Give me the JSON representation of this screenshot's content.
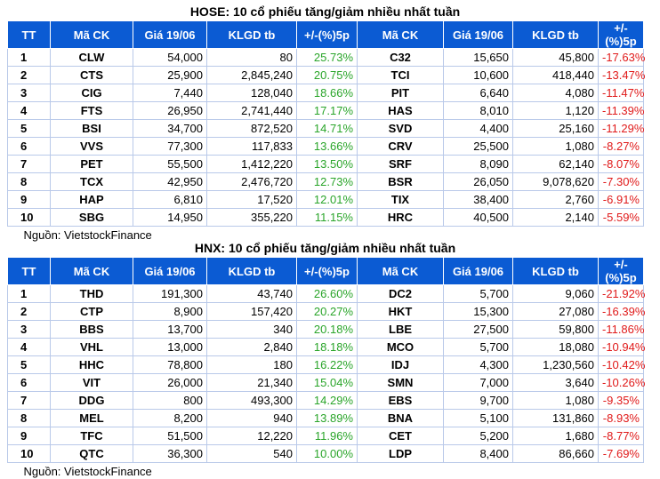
{
  "headers": [
    "TT",
    "Mã CK",
    "Giá 19/06",
    "KLGD tb",
    "+/-(%)5p",
    "Mã CK",
    "Giá 19/06",
    "KLGD tb",
    "+/-(%)5p"
  ],
  "hose": {
    "title": "HOSE: 10 cổ phiếu tăng/giảm nhiều nhất tuần",
    "source": "Nguồn: VietstockFinance",
    "rows": [
      {
        "tt": "1",
        "g_sym": "CLW",
        "g_price": "54,000",
        "g_vol": "80",
        "g_pct": "25.73%",
        "l_sym": "C32",
        "l_price": "15,650",
        "l_vol": "45,800",
        "l_pct": "-17.63%"
      },
      {
        "tt": "2",
        "g_sym": "CTS",
        "g_price": "25,900",
        "g_vol": "2,845,240",
        "g_pct": "20.75%",
        "l_sym": "TCI",
        "l_price": "10,600",
        "l_vol": "418,440",
        "l_pct": "-13.47%"
      },
      {
        "tt": "3",
        "g_sym": "CIG",
        "g_price": "7,440",
        "g_vol": "128,040",
        "g_pct": "18.66%",
        "l_sym": "PIT",
        "l_price": "6,640",
        "l_vol": "4,080",
        "l_pct": "-11.47%"
      },
      {
        "tt": "4",
        "g_sym": "FTS",
        "g_price": "26,950",
        "g_vol": "2,741,440",
        "g_pct": "17.17%",
        "l_sym": "HAS",
        "l_price": "8,010",
        "l_vol": "1,120",
        "l_pct": "-11.39%"
      },
      {
        "tt": "5",
        "g_sym": "BSI",
        "g_price": "34,700",
        "g_vol": "872,520",
        "g_pct": "14.71%",
        "l_sym": "SVD",
        "l_price": "4,400",
        "l_vol": "25,160",
        "l_pct": "-11.29%"
      },
      {
        "tt": "6",
        "g_sym": "VVS",
        "g_price": "77,300",
        "g_vol": "117,833",
        "g_pct": "13.66%",
        "l_sym": "CRV",
        "l_price": "25,500",
        "l_vol": "1,080",
        "l_pct": "-8.27%"
      },
      {
        "tt": "7",
        "g_sym": "PET",
        "g_price": "55,500",
        "g_vol": "1,412,220",
        "g_pct": "13.50%",
        "l_sym": "SRF",
        "l_price": "8,090",
        "l_vol": "62,140",
        "l_pct": "-8.07%"
      },
      {
        "tt": "8",
        "g_sym": "TCX",
        "g_price": "42,950",
        "g_vol": "2,476,720",
        "g_pct": "12.73%",
        "l_sym": "BSR",
        "l_price": "26,050",
        "l_vol": "9,078,620",
        "l_pct": "-7.30%"
      },
      {
        "tt": "9",
        "g_sym": "HAP",
        "g_price": "6,810",
        "g_vol": "17,520",
        "g_pct": "12.01%",
        "l_sym": "TIX",
        "l_price": "38,400",
        "l_vol": "2,760",
        "l_pct": "-6.91%"
      },
      {
        "tt": "10",
        "g_sym": "SBG",
        "g_price": "14,950",
        "g_vol": "355,220",
        "g_pct": "11.15%",
        "l_sym": "HRC",
        "l_price": "40,500",
        "l_vol": "2,140",
        "l_pct": "-5.59%"
      }
    ]
  },
  "hnx": {
    "title": "HNX: 10 cổ phiếu tăng/giảm nhiều nhất tuần",
    "source": "Nguồn: VietstockFinance",
    "rows": [
      {
        "tt": "1",
        "g_sym": "THD",
        "g_price": "191,300",
        "g_vol": "43,740",
        "g_pct": "26.60%",
        "l_sym": "DC2",
        "l_price": "5,700",
        "l_vol": "9,060",
        "l_pct": "-21.92%"
      },
      {
        "tt": "2",
        "g_sym": "CTP",
        "g_price": "8,900",
        "g_vol": "157,420",
        "g_pct": "20.27%",
        "l_sym": "HKT",
        "l_price": "15,300",
        "l_vol": "27,080",
        "l_pct": "-16.39%"
      },
      {
        "tt": "3",
        "g_sym": "BBS",
        "g_price": "13,700",
        "g_vol": "340",
        "g_pct": "20.18%",
        "l_sym": "LBE",
        "l_price": "27,500",
        "l_vol": "59,800",
        "l_pct": "-11.86%"
      },
      {
        "tt": "4",
        "g_sym": "VHL",
        "g_price": "13,000",
        "g_vol": "2,840",
        "g_pct": "18.18%",
        "l_sym": "MCO",
        "l_price": "5,700",
        "l_vol": "18,080",
        "l_pct": "-10.94%"
      },
      {
        "tt": "5",
        "g_sym": "HHC",
        "g_price": "78,800",
        "g_vol": "180",
        "g_pct": "16.22%",
        "l_sym": "IDJ",
        "l_price": "4,300",
        "l_vol": "1,230,560",
        "l_pct": "-10.42%"
      },
      {
        "tt": "6",
        "g_sym": "VIT",
        "g_price": "26,000",
        "g_vol": "21,340",
        "g_pct": "15.04%",
        "l_sym": "SMN",
        "l_price": "7,000",
        "l_vol": "3,640",
        "l_pct": "-10.26%"
      },
      {
        "tt": "7",
        "g_sym": "DDG",
        "g_price": "800",
        "g_vol": "493,300",
        "g_pct": "14.29%",
        "l_sym": "EBS",
        "l_price": "9,700",
        "l_vol": "1,080",
        "l_pct": "-9.35%"
      },
      {
        "tt": "8",
        "g_sym": "MEL",
        "g_price": "8,200",
        "g_vol": "940",
        "g_pct": "13.89%",
        "l_sym": "BNA",
        "l_price": "5,100",
        "l_vol": "131,860",
        "l_pct": "-8.93%"
      },
      {
        "tt": "9",
        "g_sym": "TFC",
        "g_price": "51,500",
        "g_vol": "12,220",
        "g_pct": "11.96%",
        "l_sym": "CET",
        "l_price": "5,200",
        "l_vol": "1,680",
        "l_pct": "-8.77%"
      },
      {
        "tt": "10",
        "g_sym": "QTC",
        "g_price": "36,300",
        "g_vol": "540",
        "g_pct": "10.00%",
        "l_sym": "LDP",
        "l_price": "8,400",
        "l_vol": "86,660",
        "l_pct": "-7.69%"
      }
    ]
  },
  "colors": {
    "header_bg": "#0b5bd3",
    "header_text": "#ffffff",
    "gain": "#2aa52a",
    "loss": "#e01a1a",
    "grid": "#b9c9e9"
  }
}
